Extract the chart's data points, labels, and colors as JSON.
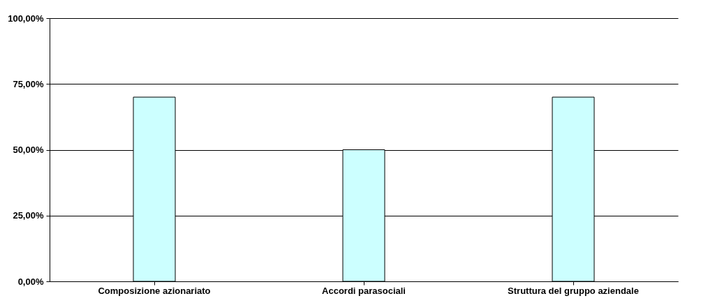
{
  "chart_data": {
    "type": "bar",
    "categories": [
      "Composizione azionariato",
      "Accordi parasociali",
      "Struttura del gruppo aziendale"
    ],
    "values": [
      70,
      50,
      70
    ],
    "color": "#ccffff",
    "ylim": [
      0,
      100
    ],
    "yticks": [
      {
        "value": 0,
        "label": "0,00%"
      },
      {
        "value": 25,
        "label": "25,00%"
      },
      {
        "value": 50,
        "label": "50,00%"
      },
      {
        "value": 75,
        "label": "75,00%"
      },
      {
        "value": 100,
        "label": "100,00%"
      }
    ],
    "grid": "y"
  }
}
